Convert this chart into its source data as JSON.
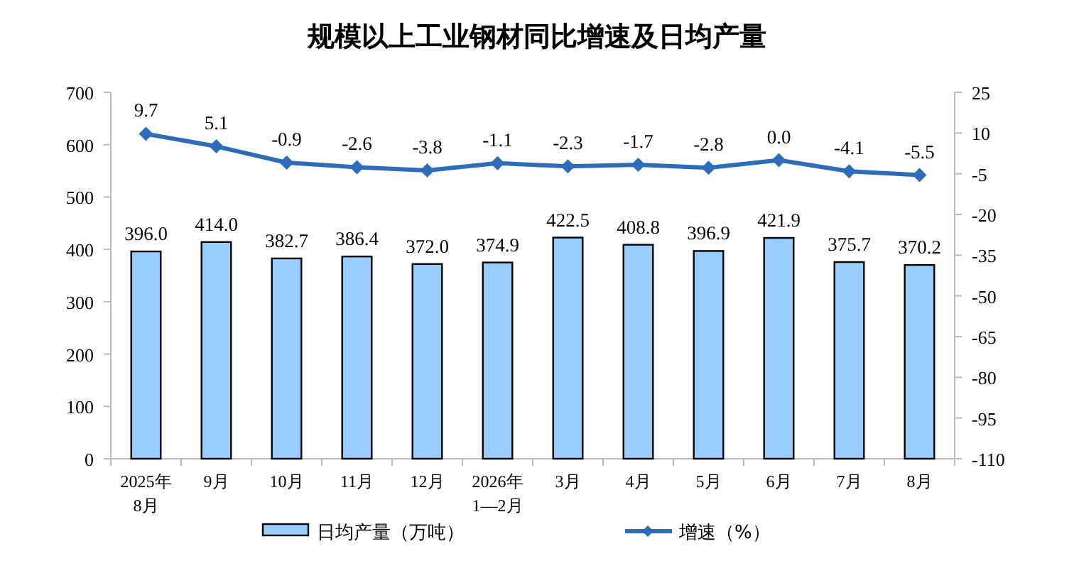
{
  "chart_data": {
    "type": "bar",
    "title": "规模以上工业钢材同比增速及日均产量",
    "categories": [
      "2025年\n8月",
      "9月",
      "10月",
      "11月",
      "12月",
      "2026年\n1—2月",
      "3月",
      "4月",
      "5月",
      "6月",
      "7月",
      "8月"
    ],
    "series": [
      {
        "name": "日均产量（万吨）",
        "color": "#99ccff",
        "values": [
          396.0,
          414.0,
          382.7,
          386.4,
          372.0,
          374.9,
          422.5,
          408.8,
          396.9,
          421.9,
          375.7,
          370.2
        ],
        "value_labels": [
          "396.0",
          "414.0",
          "382.7",
          "386.4",
          "372.0",
          "374.9",
          "422.5",
          "408.8",
          "396.9",
          "421.9",
          "375.7",
          "370.2"
        ]
      },
      {
        "name": "增速（%）",
        "type": "line",
        "axis": "y2",
        "color": "#2e6cb8",
        "marker": "diamond",
        "values": [
          9.7,
          5.1,
          -0.9,
          -2.6,
          -3.8,
          -1.1,
          -2.3,
          -1.7,
          -2.8,
          0.0,
          -4.1,
          -5.5
        ],
        "value_labels": [
          "9.7",
          "5.1",
          "-0.9",
          "-2.6",
          "-3.8",
          "-1.1",
          "-2.3",
          "-1.7",
          "-2.8",
          "0.0",
          "-4.1",
          "-5.5"
        ]
      }
    ],
    "ylim": [
      0,
      700
    ],
    "yticks": [
      0,
      100,
      200,
      300,
      400,
      500,
      600,
      700
    ],
    "y2lim": [
      -110,
      25
    ],
    "y2ticks": [
      -110,
      -95,
      -80,
      -65,
      -50,
      -35,
      -20,
      -5,
      10,
      25
    ],
    "legend": "bottom",
    "grid": false
  }
}
